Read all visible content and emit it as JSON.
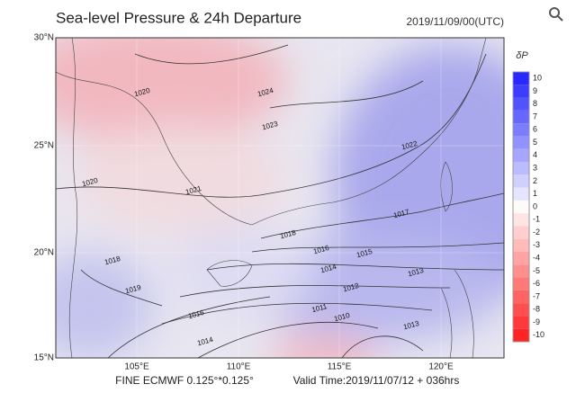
{
  "header": {
    "title": "Sea-level Pressure & 24h Departure",
    "time": "2019/11/09/00(UTC)"
  },
  "map": {
    "lat_labels": [
      "30°N",
      "25°N",
      "20°N",
      "15°N"
    ],
    "lon_labels": [
      "105°E",
      "110°E",
      "115°E",
      "120°E"
    ],
    "isobar_labels": [
      "1020",
      "1024",
      "1022",
      "1021",
      "1023",
      "1020",
      "1018",
      "1016",
      "1015",
      "1014",
      "1013",
      "1012",
      "1011",
      "1010",
      "1017",
      "1019",
      "1016",
      "1014",
      "1013",
      "1018"
    ]
  },
  "colorbar": {
    "title": "δP",
    "ticks": [
      "10",
      "9",
      "8",
      "7",
      "6",
      "5",
      "4",
      "3",
      "2",
      "1",
      "0",
      "-1",
      "-2",
      "-3",
      "-4",
      "-5",
      "-6",
      "-7",
      "-8",
      "-9",
      "-10"
    ]
  },
  "footer": {
    "model": "FINE ECMWF 0.125°*0.125°",
    "valid": "Valid Time:2019/11/07/12 + 036hrs"
  }
}
